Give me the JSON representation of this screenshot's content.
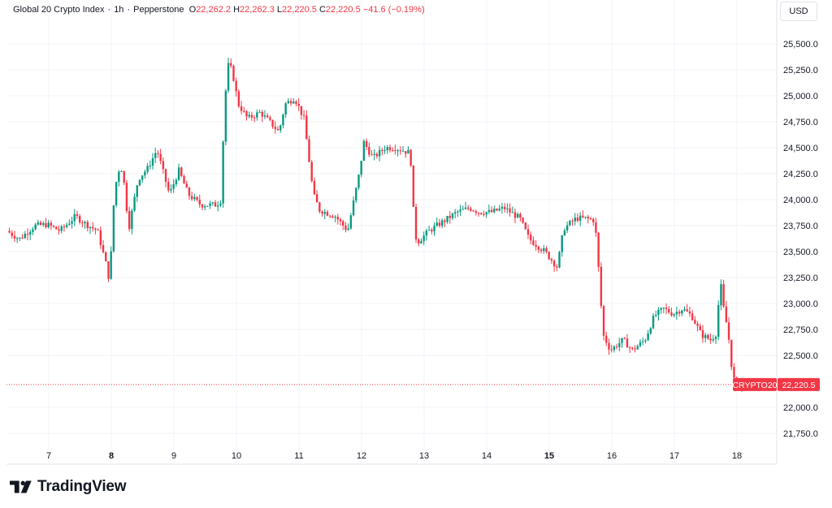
{
  "legend": {
    "symbol_name": "Global 20 Crypto Index",
    "interval": "1h",
    "source": "Pepperstone",
    "open_label": "O",
    "open": "22,262.2",
    "high_label": "H",
    "high": "22,262.3",
    "low_label": "L",
    "low": "22,220.5",
    "close_label": "C",
    "close": "22,220.5",
    "change": "−41.6 (−0.19%)"
  },
  "currency": "USD",
  "brand": {
    "name": "TradingView",
    "logo_icon": "tradingview-logo-icon"
  },
  "colors": {
    "up": "#089981",
    "down": "#f23645",
    "grid": "#f0f3fa",
    "axis_text": "#131722",
    "price_line": "#f23645"
  },
  "chart_data": {
    "type": "candlestick",
    "symbol_tag": "CRYPTO20",
    "last_price": "22,220.5",
    "grid": true,
    "ylim": [
      21700,
      25650
    ],
    "y_ticks": [
      {
        "value": 25500,
        "label": "25,500.0"
      },
      {
        "value": 25250,
        "label": "25,250.0"
      },
      {
        "value": 25000,
        "label": "25,000.0"
      },
      {
        "value": 24750,
        "label": "24,750.0"
      },
      {
        "value": 24500,
        "label": "24,500.0"
      },
      {
        "value": 24250,
        "label": "24,250.0"
      },
      {
        "value": 24000,
        "label": "24,000.0"
      },
      {
        "value": 23750,
        "label": "23,750.0"
      },
      {
        "value": 23500,
        "label": "23,500.0"
      },
      {
        "value": 23250,
        "label": "23,250.0"
      },
      {
        "value": 23000,
        "label": "23,000.0"
      },
      {
        "value": 22750,
        "label": "22,750.0"
      },
      {
        "value": 22500,
        "label": "22,500.0"
      },
      {
        "value": 22000,
        "label": "22,000.0"
      },
      {
        "value": 21750,
        "label": "21,750.0"
      }
    ],
    "x_ticks": [
      {
        "label": "7",
        "day": 7,
        "bold": false
      },
      {
        "label": "8",
        "day": 8,
        "bold": true
      },
      {
        "label": "9",
        "day": 9,
        "bold": false
      },
      {
        "label": "10",
        "day": 10,
        "bold": false
      },
      {
        "label": "11",
        "day": 11,
        "bold": false
      },
      {
        "label": "12",
        "day": 12,
        "bold": false
      },
      {
        "label": "13",
        "day": 13,
        "bold": false
      },
      {
        "label": "14",
        "day": 14,
        "bold": false
      },
      {
        "label": "15",
        "day": 15,
        "bold": true
      },
      {
        "label": "16",
        "day": 16,
        "bold": false
      },
      {
        "label": "17",
        "day": 17,
        "bold": false
      },
      {
        "label": "18",
        "day": 18,
        "bold": false
      }
    ],
    "x_range_days": [
      6.35,
      18.45
    ],
    "anchors": [
      [
        6.35,
        23700
      ],
      [
        6.55,
        23620
      ],
      [
        6.8,
        23750
      ],
      [
        7.0,
        23760
      ],
      [
        7.2,
        23700
      ],
      [
        7.45,
        23840
      ],
      [
        7.6,
        23770
      ],
      [
        7.8,
        23700
      ],
      [
        7.97,
        23300
      ],
      [
        7.99,
        23150
      ],
      [
        8.05,
        23900
      ],
      [
        8.12,
        24280
      ],
      [
        8.2,
        24300
      ],
      [
        8.3,
        23720
      ],
      [
        8.45,
        24200
      ],
      [
        8.6,
        24300
      ],
      [
        8.75,
        24480
      ],
      [
        8.95,
        24050
      ],
      [
        9.1,
        24280
      ],
      [
        9.25,
        24050
      ],
      [
        9.45,
        23950
      ],
      [
        9.7,
        23950
      ],
      [
        9.78,
        24000
      ],
      [
        9.82,
        24800
      ],
      [
        9.88,
        25300
      ],
      [
        9.95,
        25250
      ],
      [
        10.05,
        24920
      ],
      [
        10.2,
        24780
      ],
      [
        10.4,
        24840
      ],
      [
        10.55,
        24750
      ],
      [
        10.7,
        24650
      ],
      [
        10.8,
        24920
      ],
      [
        10.95,
        24980
      ],
      [
        11.1,
        24780
      ],
      [
        11.25,
        24050
      ],
      [
        11.35,
        23900
      ],
      [
        11.6,
        23840
      ],
      [
        11.8,
        23700
      ],
      [
        12.0,
        24300
      ],
      [
        12.05,
        24560
      ],
      [
        12.2,
        24400
      ],
      [
        12.4,
        24500
      ],
      [
        12.55,
        24500
      ],
      [
        12.8,
        24450
      ],
      [
        12.85,
        23900
      ],
      [
        12.9,
        23580
      ],
      [
        13.1,
        23700
      ],
      [
        13.3,
        23780
      ],
      [
        13.55,
        23880
      ],
      [
        13.75,
        23920
      ],
      [
        13.9,
        23880
      ],
      [
        14.1,
        23880
      ],
      [
        14.3,
        23920
      ],
      [
        14.55,
        23820
      ],
      [
        14.7,
        23620
      ],
      [
        14.95,
        23500
      ],
      [
        15.15,
        23350
      ],
      [
        15.25,
        23720
      ],
      [
        15.45,
        23820
      ],
      [
        15.6,
        23820
      ],
      [
        15.75,
        23800
      ],
      [
        15.82,
        23250
      ],
      [
        15.88,
        22700
      ],
      [
        16.0,
        22550
      ],
      [
        16.2,
        22650
      ],
      [
        16.35,
        22550
      ],
      [
        16.55,
        22650
      ],
      [
        16.7,
        22880
      ],
      [
        16.85,
        22950
      ],
      [
        17.0,
        22900
      ],
      [
        17.15,
        22950
      ],
      [
        17.3,
        22880
      ],
      [
        17.45,
        22700
      ],
      [
        17.6,
        22650
      ],
      [
        17.7,
        22720
      ],
      [
        17.75,
        23250
      ],
      [
        17.8,
        22980
      ],
      [
        17.88,
        22720
      ],
      [
        17.95,
        22320
      ],
      [
        18.02,
        22180
      ],
      [
        18.15,
        22230
      ],
      [
        18.3,
        22220
      ]
    ]
  }
}
